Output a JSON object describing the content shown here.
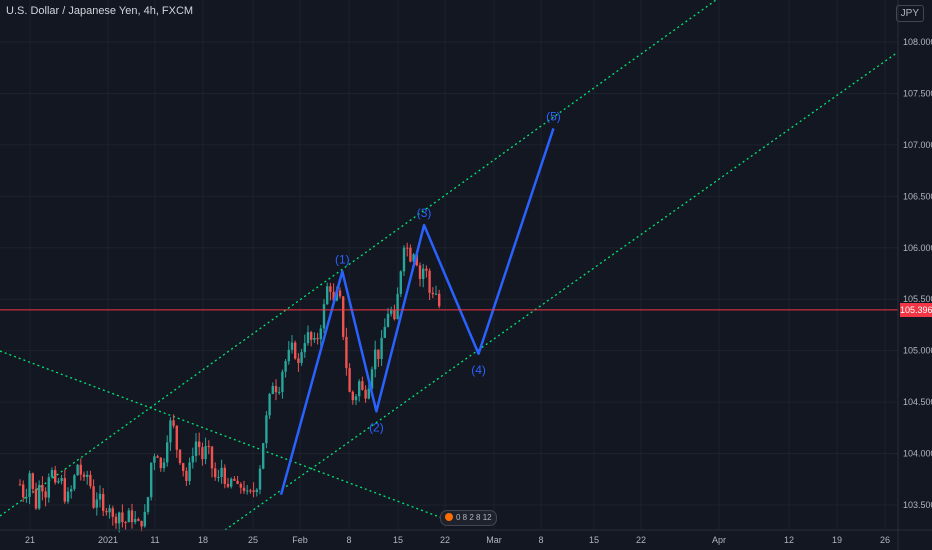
{
  "header": {
    "title": "U.S. Dollar / Japanese Yen, 4h, FXCM",
    "currency": "JPY"
  },
  "price_tag": "105.396",
  "event_badge": "0 8 2 8 12",
  "chart_data": {
    "type": "candlestick",
    "title": "U.S. Dollar / Japanese Yen, 4h, FXCM",
    "ylim": [
      103.25,
      108.35
    ],
    "y_ticks": [
      "103.500",
      "104.000",
      "104.500",
      "105.000",
      "105.500",
      "106.000",
      "106.500",
      "107.000",
      "107.500",
      "108.000"
    ],
    "x_ticks": [
      "21",
      "2021",
      "11",
      "18",
      "25",
      "Feb",
      "8",
      "15",
      "22",
      "Mar",
      "8",
      "15",
      "22",
      "Apr",
      "12",
      "19",
      "26"
    ],
    "last_price": 105.396,
    "colors": {
      "up": "#26a69a",
      "down": "#ef5350",
      "wave": "#2962ff",
      "channel": "#00e676",
      "price_line": "#f23645",
      "background": "#131722"
    },
    "wave_points": [
      {
        "label": "",
        "date": "2021-01-27",
        "price": 103.6
      },
      {
        "label": "(1)",
        "date": "2021-02-05",
        "price": 105.77
      },
      {
        "label": "(2)",
        "date": "2021-02-10",
        "price": 104.41
      },
      {
        "label": "(3)",
        "date": "2021-02-17",
        "price": 106.22
      },
      {
        "label": "(4)",
        "date": "2021-02-25",
        "price": 104.97
      },
      {
        "label": "(5)",
        "date": "2021-03-08",
        "price": 107.16
      }
    ],
    "candle_path": [
      [
        0,
        103.7
      ],
      [
        4,
        103.55
      ],
      [
        8,
        103.85
      ],
      [
        12,
        103.45
      ],
      [
        16,
        103.75
      ],
      [
        20,
        103.6
      ],
      [
        24,
        103.9
      ],
      [
        28,
        103.65
      ],
      [
        32,
        103.78
      ],
      [
        36,
        103.55
      ],
      [
        40,
        103.62
      ],
      [
        46,
        103.92
      ],
      [
        50,
        103.7
      ],
      [
        54,
        103.82
      ],
      [
        58,
        103.5
      ],
      [
        62,
        103.62
      ],
      [
        66,
        103.4
      ],
      [
        70,
        103.55
      ],
      [
        74,
        103.32
      ],
      [
        78,
        103.45
      ],
      [
        82,
        103.3
      ],
      [
        86,
        103.4
      ],
      [
        90,
        103.36
      ],
      [
        94,
        103.3
      ],
      [
        100,
        103.42
      ],
      [
        104,
        103.95
      ],
      [
        108,
        104.05
      ],
      [
        112,
        103.8
      ],
      [
        116,
        104.15
      ],
      [
        120,
        104.35
      ],
      [
        124,
        104.05
      ],
      [
        128,
        103.9
      ],
      [
        132,
        103.72
      ],
      [
        136,
        104.0
      ],
      [
        140,
        104.15
      ],
      [
        144,
        103.95
      ],
      [
        148,
        104.08
      ],
      [
        152,
        103.85
      ],
      [
        156,
        103.7
      ],
      [
        160,
        103.9
      ],
      [
        164,
        103.6
      ],
      [
        168,
        103.78
      ],
      [
        172,
        103.65
      ],
      [
        176,
        103.7
      ],
      [
        180,
        103.58
      ],
      [
        184,
        103.62
      ],
      [
        188,
        103.72
      ],
      [
        192,
        104.1
      ],
      [
        196,
        104.45
      ],
      [
        200,
        104.7
      ],
      [
        204,
        104.6
      ],
      [
        208,
        104.85
      ],
      [
        212,
        104.95
      ],
      [
        216,
        105.05
      ],
      [
        220,
        104.85
      ],
      [
        224,
        105.1
      ],
      [
        228,
        105.15
      ],
      [
        232,
        105.05
      ],
      [
        236,
        105.15
      ],
      [
        240,
        105.4
      ],
      [
        244,
        105.7
      ],
      [
        248,
        105.45
      ],
      [
        252,
        105.6
      ],
      [
        256,
        105.1
      ],
      [
        260,
        104.6
      ],
      [
        264,
        104.5
      ],
      [
        268,
        104.7
      ],
      [
        272,
        104.55
      ],
      [
        276,
        104.7
      ],
      [
        280,
        105.0
      ],
      [
        284,
        104.95
      ],
      [
        288,
        105.2
      ],
      [
        292,
        105.45
      ],
      [
        296,
        105.25
      ],
      [
        300,
        105.7
      ],
      [
        304,
        106.1
      ],
      [
        308,
        105.9
      ],
      [
        312,
        106.0
      ],
      [
        316,
        105.7
      ],
      [
        320,
        105.85
      ],
      [
        324,
        105.55
      ],
      [
        328,
        105.6
      ],
      [
        332,
        105.4
      ]
    ]
  }
}
